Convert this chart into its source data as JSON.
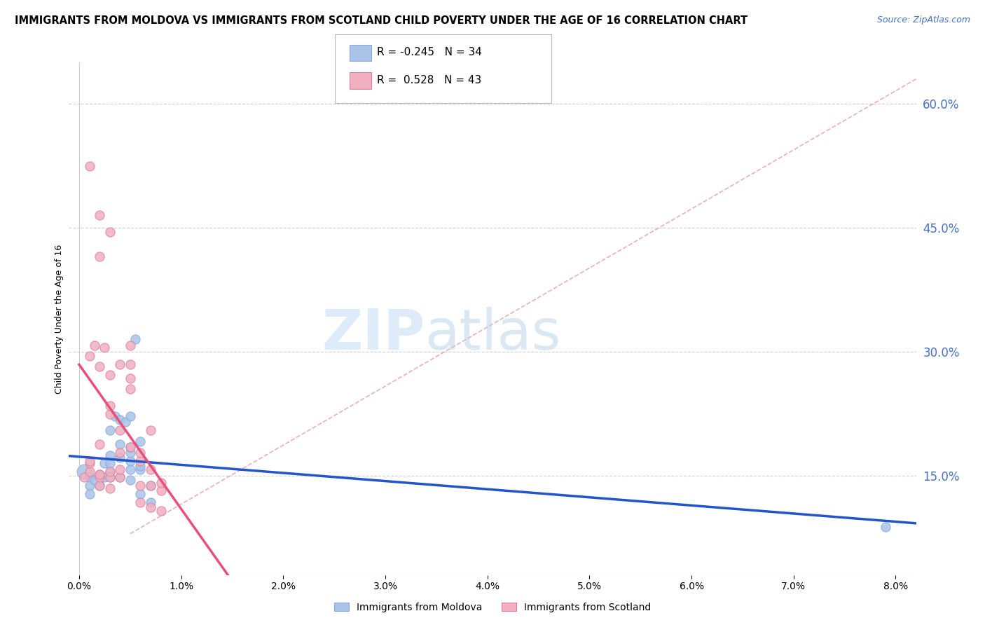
{
  "title": "IMMIGRANTS FROM MOLDOVA VS IMMIGRANTS FROM SCOTLAND CHILD POVERTY UNDER THE AGE OF 16 CORRELATION CHART",
  "source": "Source: ZipAtlas.com",
  "ylabel": "Child Poverty Under the Age of 16",
  "xlim": [
    -0.001,
    0.082
  ],
  "ylim": [
    0.03,
    0.65
  ],
  "xticks": [
    0.0,
    0.01,
    0.02,
    0.03,
    0.04,
    0.05,
    0.06,
    0.07,
    0.08
  ],
  "xticklabels": [
    "0.0%",
    "1.0%",
    "2.0%",
    "3.0%",
    "4.0%",
    "5.0%",
    "6.0%",
    "7.0%",
    "8.0%"
  ],
  "yticks_right": [
    0.15,
    0.3,
    0.45,
    0.6
  ],
  "yticklabels_right": [
    "15.0%",
    "30.0%",
    "45.0%",
    "60.0%"
  ],
  "grid_color": "#d0d0d0",
  "background_color": "#ffffff",
  "moldova_color": "#aac4e8",
  "scotland_color": "#f0b0c0",
  "moldova_edge_color": "#88aadd",
  "scotland_edge_color": "#e080a0",
  "moldova_line_color": "#2255cc",
  "scotland_line_color": "#e8507a",
  "ref_line_color": "#e8b0b8",
  "moldova_R": -0.245,
  "moldova_N": 34,
  "scotland_R": 0.528,
  "scotland_N": 43,
  "moldova_points": [
    [
      0.0005,
      0.155
    ],
    [
      0.001,
      0.148
    ],
    [
      0.001,
      0.138
    ],
    [
      0.001,
      0.128
    ],
    [
      0.0015,
      0.145
    ],
    [
      0.002,
      0.152
    ],
    [
      0.002,
      0.138
    ],
    [
      0.0025,
      0.165
    ],
    [
      0.0025,
      0.148
    ],
    [
      0.003,
      0.155
    ],
    [
      0.003,
      0.148
    ],
    [
      0.003,
      0.165
    ],
    [
      0.003,
      0.175
    ],
    [
      0.003,
      0.205
    ],
    [
      0.0035,
      0.222
    ],
    [
      0.004,
      0.148
    ],
    [
      0.004,
      0.172
    ],
    [
      0.004,
      0.188
    ],
    [
      0.004,
      0.218
    ],
    [
      0.0045,
      0.215
    ],
    [
      0.005,
      0.145
    ],
    [
      0.005,
      0.158
    ],
    [
      0.005,
      0.168
    ],
    [
      0.005,
      0.178
    ],
    [
      0.005,
      0.185
    ],
    [
      0.005,
      0.222
    ],
    [
      0.0055,
      0.315
    ],
    [
      0.006,
      0.128
    ],
    [
      0.006,
      0.158
    ],
    [
      0.006,
      0.162
    ],
    [
      0.006,
      0.192
    ],
    [
      0.007,
      0.118
    ],
    [
      0.007,
      0.138
    ],
    [
      0.079,
      0.088
    ]
  ],
  "scotland_points": [
    [
      0.0005,
      0.148
    ],
    [
      0.001,
      0.155
    ],
    [
      0.001,
      0.165
    ],
    [
      0.001,
      0.295
    ],
    [
      0.0015,
      0.308
    ],
    [
      0.002,
      0.138
    ],
    [
      0.002,
      0.148
    ],
    [
      0.002,
      0.152
    ],
    [
      0.002,
      0.188
    ],
    [
      0.002,
      0.282
    ],
    [
      0.0025,
      0.305
    ],
    [
      0.003,
      0.135
    ],
    [
      0.003,
      0.148
    ],
    [
      0.003,
      0.155
    ],
    [
      0.003,
      0.225
    ],
    [
      0.003,
      0.235
    ],
    [
      0.003,
      0.272
    ],
    [
      0.004,
      0.148
    ],
    [
      0.004,
      0.158
    ],
    [
      0.004,
      0.178
    ],
    [
      0.004,
      0.205
    ],
    [
      0.004,
      0.285
    ],
    [
      0.005,
      0.185
    ],
    [
      0.005,
      0.255
    ],
    [
      0.005,
      0.268
    ],
    [
      0.005,
      0.285
    ],
    [
      0.006,
      0.118
    ],
    [
      0.006,
      0.138
    ],
    [
      0.006,
      0.168
    ],
    [
      0.006,
      0.178
    ],
    [
      0.007,
      0.112
    ],
    [
      0.007,
      0.138
    ],
    [
      0.007,
      0.158
    ],
    [
      0.007,
      0.205
    ],
    [
      0.008,
      0.108
    ],
    [
      0.008,
      0.132
    ],
    [
      0.008,
      0.142
    ],
    [
      0.001,
      0.525
    ],
    [
      0.002,
      0.465
    ],
    [
      0.002,
      0.415
    ],
    [
      0.003,
      0.445
    ],
    [
      0.001,
      0.168
    ],
    [
      0.005,
      0.308
    ]
  ],
  "title_fontsize": 10.5,
  "axis_label_fontsize": 9,
  "tick_fontsize": 10,
  "legend_fontsize": 11,
  "watermark_zip_color": "#c5dff5",
  "watermark_atlas_color": "#b8cfe8"
}
